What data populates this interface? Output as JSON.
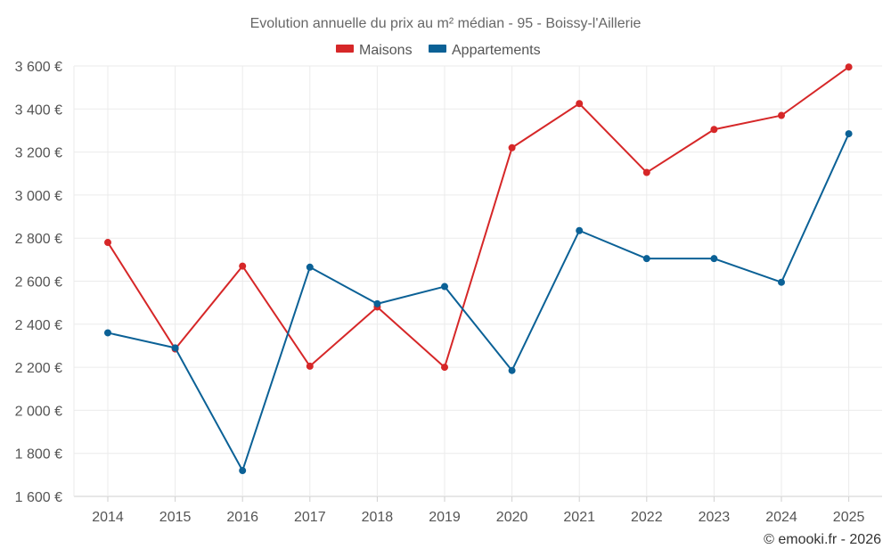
{
  "chart_data": {
    "type": "line",
    "title": "Evolution annuelle du prix au m² médian - 95 - Boissy-l'Aillerie",
    "categories": [
      "2014",
      "2015",
      "2016",
      "2017",
      "2018",
      "2019",
      "2020",
      "2021",
      "2022",
      "2023",
      "2024",
      "2025"
    ],
    "series": [
      {
        "name": "Maisons",
        "color": "#d62728",
        "values": [
          2780,
          2285,
          2670,
          2205,
          2480,
          2200,
          3220,
          3425,
          3105,
          3305,
          3370,
          3595
        ]
      },
      {
        "name": "Appartements",
        "color": "#0b6196",
        "values": [
          2360,
          2290,
          1720,
          2665,
          2495,
          2575,
          2185,
          2835,
          2705,
          2705,
          2595,
          3285
        ]
      }
    ],
    "ylim": [
      1600,
      3600
    ],
    "yticks": [
      1600,
      1800,
      2000,
      2200,
      2400,
      2600,
      2800,
      3000,
      3200,
      3400,
      3600
    ],
    "ytick_labels": [
      "1 600 €",
      "1 800 €",
      "2 000 €",
      "2 200 €",
      "2 400 €",
      "2 600 €",
      "2 800 €",
      "3 000 €",
      "3 200 €",
      "3 400 €",
      "3 600 €"
    ],
    "xlabel": "",
    "ylabel": "",
    "legend_position": "top-center",
    "grid": true
  },
  "credit": "© emooki.fr - 2026"
}
